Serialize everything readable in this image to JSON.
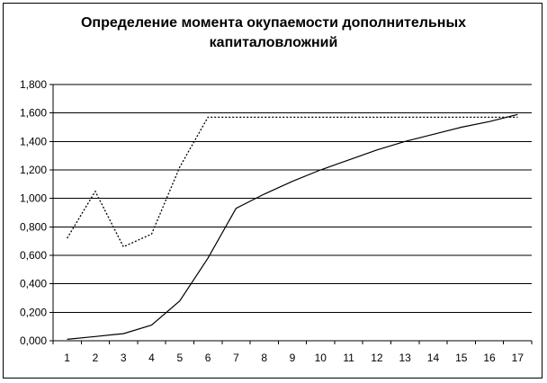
{
  "chart_data": {
    "type": "line",
    "title_lines": [
      "Определение момента окупаемости дополнительных",
      "капиталовложний"
    ],
    "xlabel": "",
    "ylabel": "",
    "categories": [
      "1",
      "2",
      "3",
      "4",
      "5",
      "6",
      "7",
      "8",
      "9",
      "10",
      "11",
      "12",
      "13",
      "14",
      "15",
      "16",
      "17"
    ],
    "ylim": [
      0,
      1.8
    ],
    "yticks": [
      "0,000",
      "0,200",
      "0,400",
      "0,600",
      "0,800",
      "1,000",
      "1,200",
      "1,400",
      "1,600",
      "1,800"
    ],
    "grid": "horizontal",
    "legend": "none",
    "series": [
      {
        "style": "dotted",
        "color": "#000000",
        "values": [
          0.72,
          1.05,
          0.66,
          0.75,
          1.22,
          1.57,
          1.57,
          1.57,
          1.57,
          1.57,
          1.57,
          1.57,
          1.57,
          1.57,
          1.57,
          1.57,
          1.57
        ]
      },
      {
        "style": "solid",
        "color": "#000000",
        "values": [
          0.01,
          0.03,
          0.05,
          0.11,
          0.28,
          0.58,
          0.93,
          1.03,
          1.12,
          1.2,
          1.27,
          1.34,
          1.4,
          1.45,
          1.5,
          1.54,
          1.59
        ]
      }
    ]
  }
}
